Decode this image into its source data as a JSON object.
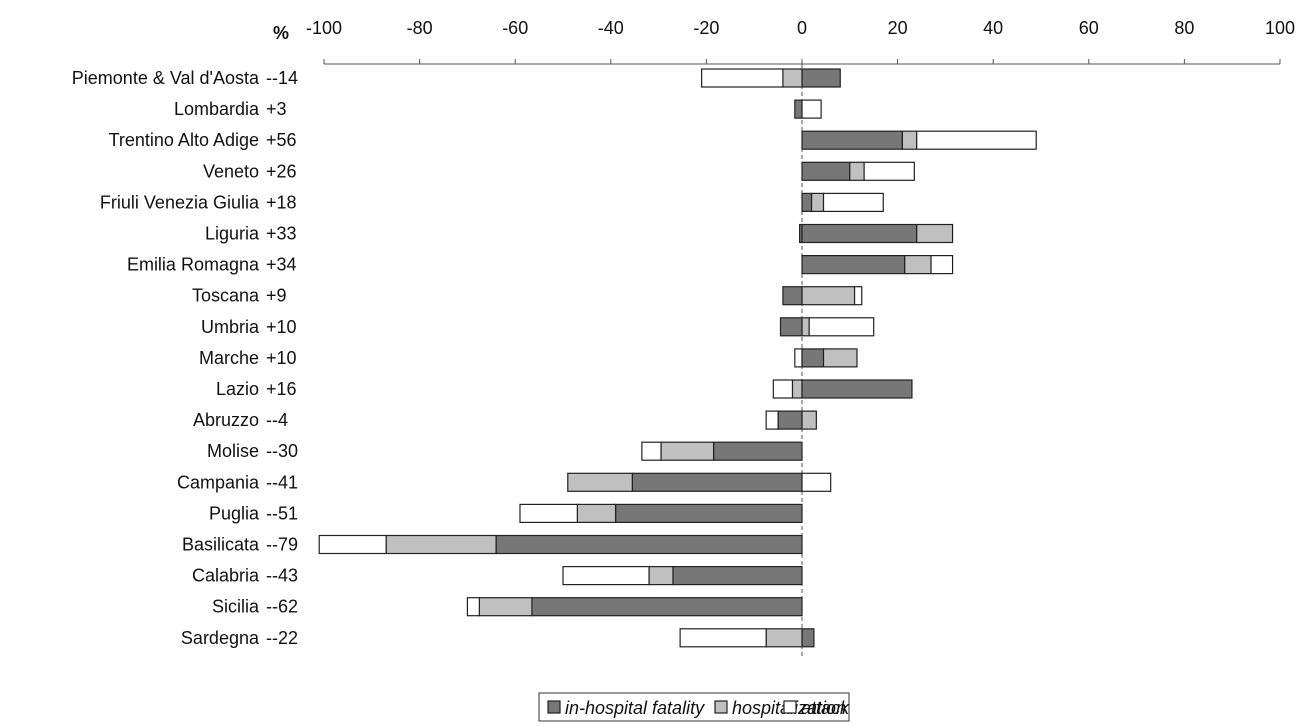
{
  "chart_data": {
    "type": "bar",
    "orientation": "horizontal",
    "stacked": true,
    "axis_unit_label": "%",
    "xlim": [
      -100,
      100
    ],
    "xticks": [
      -100,
      -80,
      -60,
      -40,
      -20,
      0,
      20,
      40,
      60,
      80,
      100
    ],
    "grid": false,
    "legend_position": "bottom",
    "colors": {
      "in-hospital fatality": "#777777",
      "hospitalization": "#c0c0c0",
      "attack": "#ffffff",
      "outline": "#222222"
    },
    "series_names": [
      "in-hospital fatality",
      "hospitalization",
      "attack"
    ],
    "categories": [
      {
        "name": "Piemonte & Val d'Aosta",
        "total": "--14",
        "segments": [
          [
            0,
            8,
            "in-hospital fatality"
          ],
          [
            0,
            -4,
            "hospitalization"
          ],
          [
            -4,
            -21,
            "attack"
          ]
        ]
      },
      {
        "name": "Lombardia",
        "total": "+3",
        "segments": [
          [
            0,
            -1.5,
            "in-hospital fatality"
          ],
          [
            0,
            4,
            "attack"
          ]
        ]
      },
      {
        "name": "Trentino Alto Adige",
        "total": "+56",
        "segments": [
          [
            0,
            21,
            "in-hospital fatality"
          ],
          [
            21,
            24,
            "hospitalization"
          ],
          [
            24,
            49,
            "attack"
          ]
        ]
      },
      {
        "name": "Veneto",
        "total": "+26",
        "segments": [
          [
            0,
            10,
            "in-hospital fatality"
          ],
          [
            10,
            13,
            "hospitalization"
          ],
          [
            13,
            23.5,
            "attack"
          ]
        ]
      },
      {
        "name": "Friuli Venezia Giulia",
        "total": "+18",
        "segments": [
          [
            0,
            2,
            "in-hospital fatality"
          ],
          [
            2,
            4.5,
            "hospitalization"
          ],
          [
            4.5,
            17,
            "attack"
          ]
        ]
      },
      {
        "name": "Liguria",
        "total": "+33",
        "segments": [
          [
            0,
            -0.5,
            "in-hospital fatality"
          ],
          [
            0,
            24,
            "in-hospital fatality"
          ],
          [
            24,
            31.5,
            "hospitalization"
          ]
        ]
      },
      {
        "name": "Emilia Romagna",
        "total": "+34",
        "segments": [
          [
            0,
            21.5,
            "in-hospital fatality"
          ],
          [
            21.5,
            27,
            "hospitalization"
          ],
          [
            27,
            31.5,
            "attack"
          ]
        ]
      },
      {
        "name": "Toscana",
        "total": "+9",
        "segments": [
          [
            0,
            -4,
            "in-hospital fatality"
          ],
          [
            0,
            11,
            "hospitalization"
          ],
          [
            11,
            12.5,
            "attack"
          ]
        ]
      },
      {
        "name": "Umbria",
        "total": "+10",
        "segments": [
          [
            0,
            -4.5,
            "in-hospital fatality"
          ],
          [
            0,
            1.5,
            "hospitalization"
          ],
          [
            1.5,
            15,
            "attack"
          ]
        ]
      },
      {
        "name": "Marche",
        "total": "+10",
        "segments": [
          [
            0,
            -1.5,
            "attack"
          ],
          [
            0,
            4.5,
            "in-hospital fatality"
          ],
          [
            4.5,
            11.5,
            "hospitalization"
          ]
        ]
      },
      {
        "name": "Lazio",
        "total": "+16",
        "segments": [
          [
            0,
            -2,
            "hospitalization"
          ],
          [
            -2,
            -6,
            "attack"
          ],
          [
            0,
            23,
            "in-hospital fatality"
          ]
        ]
      },
      {
        "name": "Abruzzo",
        "total": "--4",
        "segments": [
          [
            0,
            -5,
            "in-hospital fatality"
          ],
          [
            -5,
            -7.5,
            "attack"
          ],
          [
            0,
            3,
            "hospitalization"
          ]
        ]
      },
      {
        "name": "Molise",
        "total": "--30",
        "segments": [
          [
            0,
            -18.5,
            "in-hospital fatality"
          ],
          [
            -18.5,
            -29.5,
            "hospitalization"
          ],
          [
            -29.5,
            -33.5,
            "attack"
          ]
        ]
      },
      {
        "name": "Campania",
        "total": "--41",
        "segments": [
          [
            0,
            -35.5,
            "in-hospital fatality"
          ],
          [
            -35.5,
            -49,
            "hospitalization"
          ],
          [
            0,
            6,
            "attack"
          ]
        ]
      },
      {
        "name": "Puglia",
        "total": "--51",
        "segments": [
          [
            0,
            -39,
            "in-hospital fatality"
          ],
          [
            -39,
            -47,
            "hospitalization"
          ],
          [
            -47,
            -59,
            "attack"
          ]
        ]
      },
      {
        "name": "Basilicata",
        "total": "--79",
        "segments": [
          [
            0,
            -64,
            "in-hospital fatality"
          ],
          [
            -64,
            -87,
            "hospitalization"
          ],
          [
            -87,
            -101,
            "attack"
          ]
        ]
      },
      {
        "name": "Calabria",
        "total": "--43",
        "segments": [
          [
            0,
            -27,
            "in-hospital fatality"
          ],
          [
            -27,
            -32,
            "hospitalization"
          ],
          [
            -32,
            -50,
            "attack"
          ]
        ]
      },
      {
        "name": "Sicilia",
        "total": "--62",
        "segments": [
          [
            0,
            -56.5,
            "in-hospital fatality"
          ],
          [
            -56.5,
            -67.5,
            "hospitalization"
          ],
          [
            -67.5,
            -70,
            "attack"
          ]
        ]
      },
      {
        "name": "Sardegna",
        "total": "--22",
        "segments": [
          [
            0,
            2.5,
            "in-hospital fatality"
          ],
          [
            0,
            -7.5,
            "hospitalization"
          ],
          [
            -7.5,
            -25.5,
            "attack"
          ]
        ]
      }
    ]
  }
}
